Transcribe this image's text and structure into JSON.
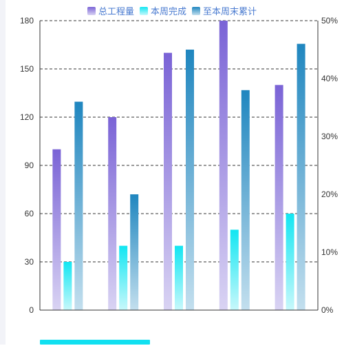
{
  "chart_data": {
    "type": "bar",
    "categories": [
      "",
      "",
      "",
      "",
      ""
    ],
    "series": [
      {
        "name": "总工程量",
        "axis": "left",
        "values": [
          100,
          120,
          160,
          180,
          140
        ],
        "color_top": "#7a63d6",
        "color_bottom": "#d9d3f3"
      },
      {
        "name": "本周完成",
        "axis": "left",
        "values": [
          30,
          40,
          40,
          50,
          60
        ],
        "color_top": "#12e6f2",
        "color_bottom": "#c8f8fb"
      },
      {
        "name": "至本周末累计",
        "axis": "right",
        "values": [
          36,
          20,
          45,
          38,
          46
        ],
        "color_top": "#1f86bf",
        "color_bottom": "#c3dfee"
      }
    ],
    "y_left": {
      "ylim": [
        0,
        180
      ],
      "ticks": [
        "0",
        "30",
        "60",
        "90",
        "120",
        "150",
        "180"
      ]
    },
    "y_right": {
      "ylim": [
        0,
        50
      ],
      "ticks": [
        "0%",
        "10%",
        "20%",
        "30%",
        "40%",
        "50%"
      ]
    },
    "grid": true,
    "legend": "top-center",
    "title": "",
    "xlabel": "",
    "ylabel": ""
  },
  "colors": {
    "legend_text": "#4a7bd0",
    "axis_text": "#333333",
    "grid": "#333333",
    "scroll_thumb": "#11e0f0"
  }
}
